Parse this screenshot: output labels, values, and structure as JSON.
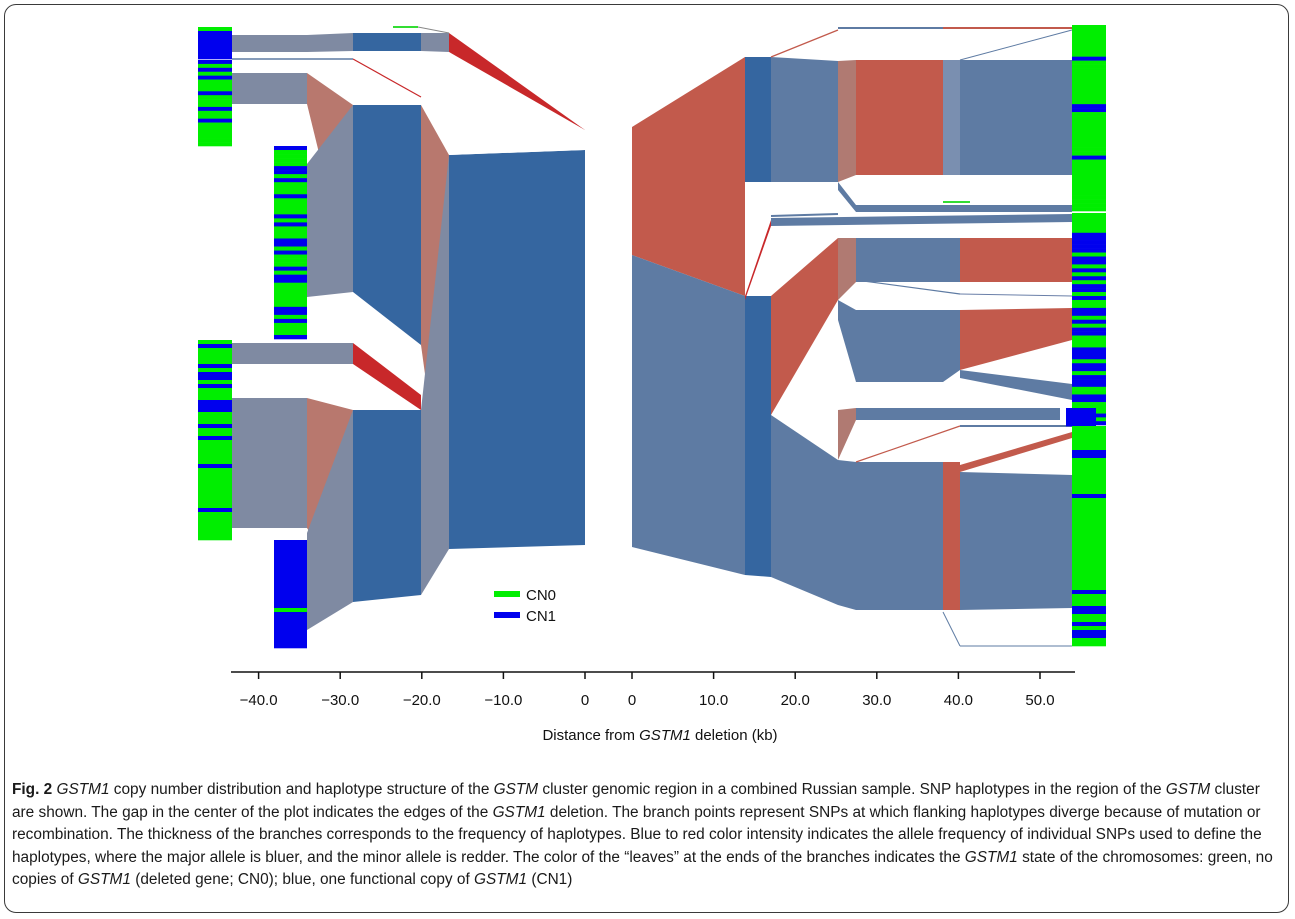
{
  "figure": {
    "label": "Fig. 2",
    "caption_parts": [
      {
        "t": "GSTM1",
        "i": true
      },
      {
        "t": " copy number distribution and haplotype structure of the ",
        "i": false
      },
      {
        "t": "GSTM",
        "i": true
      },
      {
        "t": " cluster genomic region in a combined Russian sample. SNP haplotypes in the region of the ",
        "i": false
      },
      {
        "t": "GSTM",
        "i": true
      },
      {
        "t": " cluster are shown. The gap in the center of the plot indicates the edges of the ",
        "i": false
      },
      {
        "t": "GSTM1",
        "i": true
      },
      {
        "t": " deletion. The branch points represent SNPs at which flanking haplotypes diverge because of mutation or recombination. The thickness of the branches corresponds to the frequency of haplotypes. Blue to red color intensity indicates the allele frequency of individual SNPs used to define the haplotypes, where the major allele is bluer, and the minor allele is redder. The color of the “leaves” at the ends of the branches indicates the ",
        "i": false
      },
      {
        "t": "GSTM1",
        "i": true
      },
      {
        "t": " state of the chromosomes: green, no copies of ",
        "i": false
      },
      {
        "t": "GSTM1",
        "i": true
      },
      {
        "t": " (deleted gene; CN0); blue, one functional copy of ",
        "i": false
      },
      {
        "t": "GSTM1",
        "i": true
      },
      {
        "t": " (CN1)",
        "i": false
      }
    ]
  },
  "colors": {
    "cn0": "#00ee00",
    "cn1": "#0000ee",
    "major_allele": "#3566a0",
    "minor_allele": "#c8282a"
  },
  "chart_data": {
    "type": "haplotype-bifurcation",
    "xlabel": {
      "prefix": "Distance from ",
      "gene": "GSTM1",
      "suffix": " deletion (kb)"
    },
    "left_ticks": [
      "−40.0",
      "−30.0",
      "−20.0",
      "−10.0",
      "0"
    ],
    "right_ticks": [
      "0",
      "10.0",
      "20.0",
      "30.0",
      "40.0",
      "50.0"
    ],
    "left_tick_values": [
      -40,
      -30,
      -20,
      -10,
      0
    ],
    "right_tick_values": [
      0,
      10,
      20,
      30,
      40,
      50
    ],
    "legend": [
      {
        "label": "CN0",
        "color": "#00ee00"
      },
      {
        "label": "CN1",
        "color": "#0000ee"
      }
    ],
    "left_leaves": [
      {
        "cn0_fraction": 0.05
      },
      {
        "cn0_fraction": 0.85
      },
      {
        "cn0_fraction": 0.6
      },
      {
        "cn0_fraction": 0.82
      },
      {
        "cn0_fraction": 0.12
      }
    ],
    "right_leaves": [
      {
        "cn0_fraction": 0.85
      },
      {
        "cn0_fraction": 0.4
      },
      {
        "cn0_fraction": 0.3
      },
      {
        "cn0_fraction": 0.25
      },
      {
        "cn0_fraction": 0.8
      }
    ]
  }
}
